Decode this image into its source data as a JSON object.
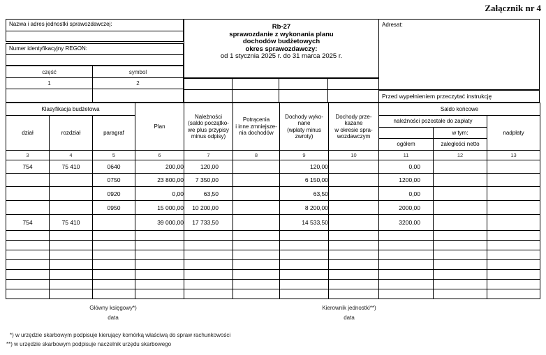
{
  "attachment_label": "Załącznik nr 4",
  "header": {
    "nazwa_label": "Nazwa i adres jednostki sprawozdawczej:",
    "nazwa_value": "",
    "regon_label": "Numer identyfikacyjny REGON:",
    "regon_value": "",
    "czesc_label": "część",
    "symbol_label": "symbol",
    "czesc_col_no": "1",
    "symbol_col_no": "2",
    "title": {
      "form_code": "Rb-27",
      "line1": "sprawozdanie z wykonania planu",
      "line2": "dochodów budżetowych",
      "line3": "okres sprawozdawczy:",
      "period": "od 1 stycznia 2025 r. do 31 marca 2025 r."
    },
    "adresat_label": "Adresat:",
    "adresat_value": "",
    "instruction_note": "Przed wypełnieniem przeczytać instrukcję"
  },
  "table": {
    "headers": {
      "klasyfikacja": "Klasyfikacja budżetowa",
      "dzial": "dział",
      "rozdzial": "rozdział",
      "paragraf": "paragraf",
      "plan": "Plan",
      "naleznosci": "Należności\n(saldo początko-\nwe plus przypisy\nminus odpisy)",
      "potracenia": "Potrącenia\ni inne zmniejsze-\nnia dochodów",
      "dochody_wykonane": "Dochody wyko-\nnane\n(wpłaty minus\nzwroty)",
      "dochody_przekazane": "Dochody prze-\nkazane\nw okresie spra-\nwozdawczym",
      "saldo_koncowe": "Saldo końcowe",
      "naleznosci_pozostale": "należności pozostałe do zapłaty",
      "w_tym": "w tym:",
      "ogolem": "ogółem",
      "zaleglosci_netto": "zaległości netto",
      "nadplaty": "nadpłaty"
    },
    "column_numbers": [
      "3",
      "4",
      "5",
      "6",
      "7",
      "8",
      "9",
      "10",
      "11",
      "12",
      "13"
    ],
    "rows": [
      [
        "754",
        "75 410",
        "0640",
        "200,00",
        "120,00",
        "",
        "120,00",
        "",
        "0,00",
        "",
        ""
      ],
      [
        "",
        "",
        "0750",
        "23 800,00",
        "7 350,00",
        "",
        "6 150,00",
        "",
        "1200,00",
        "",
        ""
      ],
      [
        "",
        "",
        "0920",
        "0,00",
        "63,50",
        "",
        "63,50",
        "",
        "0,00",
        "",
        ""
      ],
      [
        "",
        "",
        "0950",
        "15 000,00",
        "10 200,00",
        "",
        "8 200,00",
        "",
        "2000,00",
        "",
        ""
      ],
      [
        "754",
        "75 410",
        "",
        "39 000,00",
        "17 733,50",
        "",
        "14 533,50",
        "",
        "3200,00",
        "",
        ""
      ]
    ],
    "empty_row_count": 7
  },
  "signatures": {
    "left_role": "Główny księgowy*)",
    "left_date_label": "data",
    "right_role": "Kierownik jednostki**)",
    "right_date_label": "data"
  },
  "footnotes": [
    "*) w urzędzie skarbowym podpisuje kierujący komórką właściwą do spraw rachunkowości",
    "**) w urzędzie skarbowym podpisuje naczelnik urzędu skarbowego"
  ]
}
